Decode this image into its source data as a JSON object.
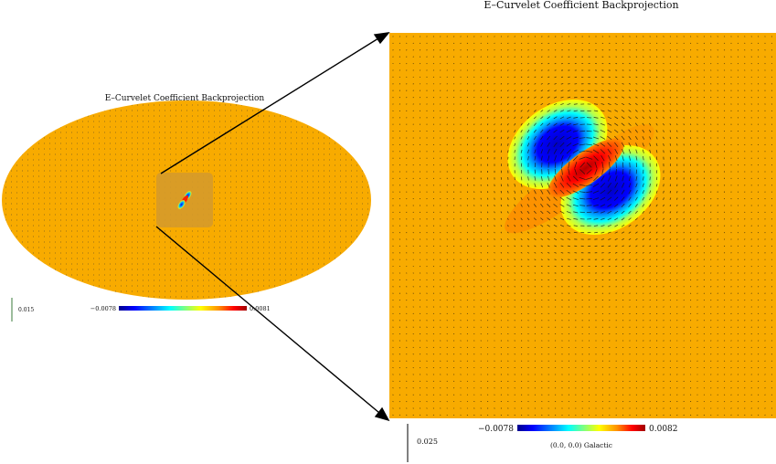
{
  "full_map": {
    "title": "E–Curvelet Coefficient  Backprojection",
    "colorbar": {
      "min_label": "−0.0078",
      "max_label": "0.0081"
    },
    "vector_scale_label": "0.015"
  },
  "zoom_map": {
    "title": "E–Curvelet Coefficient  Backprojection",
    "colorbar": {
      "min_label": "−0.0078",
      "max_label": "0.0082"
    },
    "vector_scale_label": "0.025",
    "coord_label": "(0.0, 0.0) Galactic"
  },
  "colors": {
    "background_field": "#f8ab00",
    "colormap": [
      "#00008c",
      "#0000ff",
      "#0090ff",
      "#00ffff",
      "#7fff7f",
      "#ffff00",
      "#ff9000",
      "#ff0000",
      "#a00000"
    ]
  }
}
